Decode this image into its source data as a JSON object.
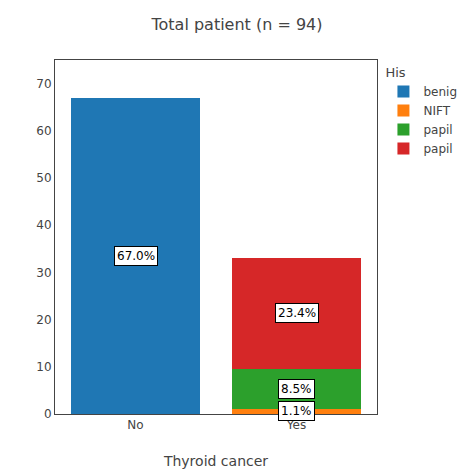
{
  "chart_data": {
    "type": "bar",
    "title": "Total patient (n = 94)",
    "xlabel": "Thyroid cancer",
    "categories": [
      "No",
      "Yes"
    ],
    "stacked": true,
    "series": [
      {
        "name": "benig",
        "values": [
          67.0,
          null
        ],
        "value_labels": [
          "67.0%",
          null
        ]
      },
      {
        "name": "NIFT",
        "values": [
          null,
          1.1
        ],
        "value_labels": [
          null,
          "1.1%"
        ]
      },
      {
        "name": "papil",
        "values": [
          null,
          8.5
        ],
        "value_labels": [
          null,
          "8.5%"
        ]
      },
      {
        "name": "papil",
        "values": [
          null,
          23.4
        ],
        "value_labels": [
          null,
          "23.4%"
        ]
      }
    ],
    "data_labels": true,
    "legend_title": "His",
    "legend": "right",
    "ylim": [
      0,
      75
    ],
    "yticks": [
      0,
      10,
      20,
      30,
      40,
      50,
      60,
      70
    ],
    "grid": false
  }
}
